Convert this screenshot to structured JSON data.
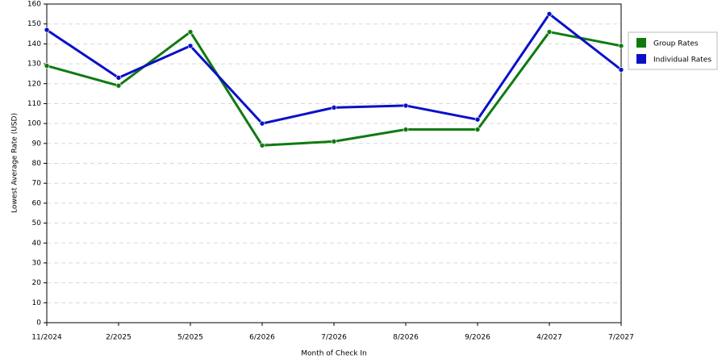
{
  "chart_data": {
    "type": "line",
    "x_label": "Month of Check In",
    "y_label": "Lowest Average Rate (USD)",
    "categories": [
      "11/2024",
      "2/2025",
      "5/2025",
      "6/2026",
      "7/2026",
      "8/2026",
      "9/2026",
      "4/2027",
      "7/2027"
    ],
    "series": [
      {
        "name": "Group Rates",
        "color": "#107a10",
        "values": [
          129,
          119,
          146,
          89,
          91,
          97,
          97,
          146,
          139
        ]
      },
      {
        "name": "Individual Rates",
        "color": "#0a10c8",
        "values": [
          147,
          123,
          139,
          100,
          108,
          109,
          102,
          155,
          127
        ]
      }
    ],
    "ylim": [
      0,
      160
    ],
    "yticks": [
      0,
      10,
      20,
      30,
      40,
      50,
      60,
      70,
      80,
      90,
      100,
      110,
      120,
      130,
      140,
      150,
      160
    ],
    "grid": true,
    "legend": "right"
  }
}
